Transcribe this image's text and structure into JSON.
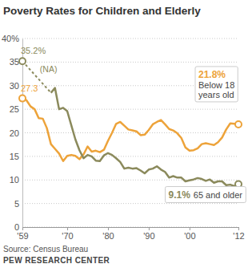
{
  "chart_data": {
    "type": "line",
    "title": "Poverty Rates for Children and Elderly",
    "x": [
      1959,
      1960,
      1961,
      1962,
      1963,
      1964,
      1965,
      1966,
      1967,
      1968,
      1969,
      1970,
      1971,
      1972,
      1973,
      1974,
      1975,
      1976,
      1977,
      1978,
      1979,
      1980,
      1981,
      1982,
      1983,
      1984,
      1985,
      1986,
      1987,
      1988,
      1989,
      1990,
      1991,
      1992,
      1993,
      1994,
      1995,
      1996,
      1997,
      1998,
      1999,
      2000,
      2001,
      2002,
      2003,
      2004,
      2005,
      2006,
      2007,
      2008,
      2009,
      2010,
      2011,
      2012
    ],
    "series": [
      {
        "name": "Below 18 years old",
        "color": "#eda33a",
        "values": [
          27.3,
          26.9,
          25.6,
          25.0,
          23.1,
          23.0,
          21.0,
          17.6,
          16.6,
          15.6,
          14.0,
          15.1,
          15.3,
          15.1,
          14.4,
          15.4,
          17.1,
          16.0,
          16.2,
          15.9,
          16.4,
          18.3,
          20.0,
          21.9,
          22.3,
          21.5,
          20.7,
          20.5,
          20.3,
          19.5,
          19.6,
          20.6,
          21.8,
          22.3,
          22.7,
          21.8,
          20.8,
          20.5,
          19.9,
          18.9,
          16.9,
          16.2,
          16.3,
          16.7,
          17.6,
          17.8,
          17.6,
          17.4,
          18.0,
          19.0,
          20.7,
          22.0,
          21.9,
          21.8
        ],
        "value_labels": [
          "27.3",
          null,
          null,
          null,
          null,
          null,
          null,
          null,
          null,
          null,
          null,
          null,
          null,
          null,
          null,
          null,
          null,
          null,
          null,
          null,
          null,
          null,
          null,
          null,
          null,
          null,
          null,
          null,
          null,
          null,
          null,
          null,
          null,
          null,
          null,
          null,
          null,
          null,
          null,
          null,
          null,
          null,
          null,
          null,
          null,
          null,
          null,
          null,
          null,
          null,
          null,
          null,
          null,
          "21.8%"
        ]
      },
      {
        "name": "65 and older",
        "color": "#8b8a5c",
        "gap_label": "(NA)",
        "values": [
          35.2,
          null,
          null,
          null,
          null,
          null,
          null,
          28.5,
          29.5,
          25.0,
          25.3,
          24.6,
          21.6,
          18.6,
          16.3,
          14.6,
          15.3,
          15.0,
          14.1,
          14.0,
          15.2,
          15.7,
          15.3,
          14.6,
          13.8,
          12.4,
          12.6,
          12.4,
          12.5,
          12.0,
          11.4,
          12.2,
          12.4,
          12.9,
          12.2,
          11.7,
          10.5,
          10.8,
          10.5,
          10.5,
          9.7,
          9.9,
          10.1,
          10.4,
          10.2,
          9.8,
          10.1,
          9.4,
          9.7,
          9.7,
          8.9,
          9.0,
          8.7,
          9.1
        ],
        "value_labels": [
          "35.2%",
          null,
          null,
          null,
          null,
          null,
          null,
          null,
          null,
          null,
          null,
          null,
          null,
          null,
          null,
          null,
          null,
          null,
          null,
          null,
          null,
          null,
          null,
          null,
          null,
          null,
          null,
          null,
          null,
          null,
          null,
          null,
          null,
          null,
          null,
          null,
          null,
          null,
          null,
          null,
          null,
          null,
          null,
          null,
          null,
          null,
          null,
          null,
          null,
          null,
          null,
          null,
          null,
          "9.1%"
        ]
      }
    ],
    "xlim": [
      1959,
      2012
    ],
    "xticks": [
      {
        "value": 1959,
        "label": "'59"
      },
      {
        "value": 1970,
        "label": "'70"
      },
      {
        "value": 1980,
        "label": "'80"
      },
      {
        "value": 1990,
        "label": "'90"
      },
      {
        "value": 2000,
        "label": "'00"
      },
      {
        "value": 2012,
        "label": "'12"
      }
    ],
    "ylim": [
      0,
      40
    ],
    "yticks": [
      0,
      5,
      10,
      15,
      20,
      25,
      30,
      35,
      {
        "value": 40,
        "label": "40%"
      }
    ],
    "grid": true,
    "source": "Source: Census Bureau",
    "credit": "PEW RESEARCH CENTER"
  }
}
